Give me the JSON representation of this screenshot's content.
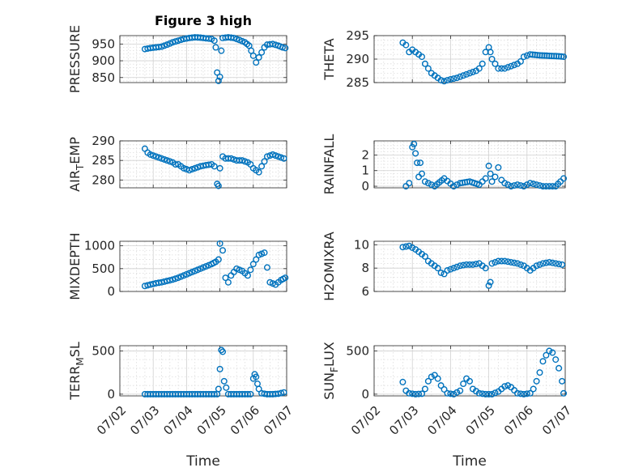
{
  "figure": {
    "title": "Figure 3 high",
    "marker_color": "#0072bd",
    "grid_color": "#dcdcdc",
    "axis_color": "#262626"
  },
  "chart_data": [
    {
      "type": "scatter",
      "ylabel": "PRESSURE",
      "xlim": [
        "07/02",
        "07/07"
      ],
      "ylim": [
        835,
        975
      ],
      "yticks": [
        850,
        900,
        950
      ],
      "xticks": [],
      "xlabel": "",
      "grid": true,
      "x": [
        "07/02 18:00",
        "07/02 22:00",
        "07/03 02:00",
        "07/03 06:00",
        "07/03 10:00",
        "07/03 14:00",
        "07/03 18:00",
        "07/03 22:00",
        "07/04 02:00",
        "07/04 06:00",
        "07/04 10:00",
        "07/04 14:00",
        "07/04 18:00",
        "07/04 20:00",
        "07/04 21:00",
        "07/04 22:00",
        "07/04 23:00",
        "07/05 00:00",
        "07/05 01:00",
        "07/05 02:00",
        "07/05 06:00",
        "07/05 10:00",
        "07/05 14:00",
        "07/05 18:00",
        "07/05 21:00",
        "07/06 00:00",
        "07/06 02:00",
        "07/06 04:00",
        "07/06 06:00",
        "07/06 08:00",
        "07/06 10:00",
        "07/06 14:00",
        "07/06 18:00",
        "07/06 21:00",
        "07/06 23:00"
      ],
      "y": [
        935,
        938,
        940,
        942,
        948,
        955,
        960,
        965,
        968,
        970,
        969,
        967,
        965,
        960,
        940,
        865,
        840,
        852,
        930,
        968,
        970,
        968,
        962,
        955,
        945,
        915,
        895,
        910,
        925,
        940,
        948,
        950,
        945,
        940,
        938
      ]
    },
    {
      "type": "scatter",
      "ylabel": "THETA",
      "xlim": [
        "07/02",
        "07/07"
      ],
      "ylim": [
        285,
        295
      ],
      "yticks": [
        285,
        290,
        295
      ],
      "xticks": [],
      "xlabel": "",
      "grid": true,
      "x": [
        "07/02 18:00",
        "07/02 20:00",
        "07/02 22:00",
        "07/03 00:00",
        "07/03 02:00",
        "07/03 04:00",
        "07/03 06:00",
        "07/03 08:00",
        "07/03 10:00",
        "07/03 12:00",
        "07/03 14:00",
        "07/03 16:00",
        "07/03 18:00",
        "07/03 20:00",
        "07/03 22:00",
        "07/04 00:00",
        "07/04 04:00",
        "07/04 08:00",
        "07/04 12:00",
        "07/04 16:00",
        "07/04 18:00",
        "07/04 20:00",
        "07/04 22:00",
        "07/05 00:00",
        "07/05 01:00",
        "07/05 02:00",
        "07/05 04:00",
        "07/05 06:00",
        "07/05 10:00",
        "07/05 14:00",
        "07/05 18:00",
        "07/05 20:00",
        "07/05 22:00",
        "07/06 02:00",
        "07/06 08:00",
        "07/06 14:00",
        "07/06 20:00",
        "07/06 23:00"
      ],
      "y": [
        293.5,
        293,
        291.5,
        292,
        291.5,
        291,
        290.5,
        289,
        288,
        287,
        286.5,
        286,
        285.5,
        285.3,
        285.5,
        285.7,
        286,
        286.5,
        287,
        287.5,
        288,
        289,
        291.5,
        292.5,
        291.5,
        290,
        289,
        288,
        288,
        288.5,
        289,
        289.5,
        290.5,
        291,
        290.8,
        290.7,
        290.6,
        290.5
      ]
    },
    {
      "type": "scatter",
      "ylabel": "AIR_TEMP",
      "xlim": [
        "07/02",
        "07/07"
      ],
      "ylim": [
        278,
        290
      ],
      "yticks": [
        280,
        285,
        290
      ],
      "xticks": [],
      "xlabel": "",
      "grid": true,
      "x": [
        "07/02 18:00",
        "07/02 20:00",
        "07/02 22:00",
        "07/03 02:00",
        "07/03 06:00",
        "07/03 10:00",
        "07/03 14:00",
        "07/03 16:00",
        "07/03 18:00",
        "07/03 20:00",
        "07/03 22:00",
        "07/04 02:00",
        "07/04 06:00",
        "07/04 10:00",
        "07/04 14:00",
        "07/04 18:00",
        "07/04 20:00",
        "07/04 22:00",
        "07/04 23:00",
        "07/05 00:00",
        "07/05 02:00",
        "07/05 04:00",
        "07/05 08:00",
        "07/05 12:00",
        "07/05 16:00",
        "07/05 20:00",
        "07/05 22:00",
        "07/06 00:00",
        "07/06 02:00",
        "07/06 04:00",
        "07/06 06:00",
        "07/06 10:00",
        "07/06 14:00",
        "07/06 18:00",
        "07/06 22:00"
      ],
      "y": [
        288,
        287,
        286.5,
        286,
        285.5,
        285,
        284.5,
        284,
        284,
        283.5,
        283,
        282.5,
        283,
        283.5,
        283.8,
        284,
        283.5,
        279,
        278.5,
        283,
        286,
        285.5,
        285.5,
        285,
        285,
        284.5,
        284,
        283,
        282.5,
        282,
        283.5,
        286,
        286.5,
        286,
        285.5
      ]
    },
    {
      "type": "scatter",
      "ylabel": "RAINFALL",
      "xlim": [
        "07/02",
        "07/07"
      ],
      "ylim": [
        -0.1,
        2.9
      ],
      "yticks": [
        0,
        1,
        2
      ],
      "xticks": [],
      "xlabel": "",
      "grid": true,
      "x": [
        "07/02 20:00",
        "07/02 22:00",
        "07/03 00:00",
        "07/03 01:00",
        "07/03 02:00",
        "07/03 03:00",
        "07/03 04:00",
        "07/03 05:00",
        "07/03 06:00",
        "07/03 08:00",
        "07/03 10:00",
        "07/03 14:00",
        "07/03 20:00",
        "07/04 02:00",
        "07/04 06:00",
        "07/04 12:00",
        "07/04 18:00",
        "07/04 22:00",
        "07/05 00:00",
        "07/05 01:00",
        "07/05 02:00",
        "07/05 04:00",
        "07/05 06:00",
        "07/05 08:00",
        "07/05 10:00",
        "07/05 14:00",
        "07/05 18:00",
        "07/05 22:00",
        "07/06 02:00",
        "07/06 06:00",
        "07/06 10:00",
        "07/06 14:00",
        "07/06 18:00",
        "07/06 21:00",
        "07/06 23:00"
      ],
      "y": [
        0,
        0.2,
        2.5,
        2.7,
        2.1,
        1.5,
        0.6,
        1.5,
        0.8,
        0.3,
        0.2,
        0,
        0.5,
        0,
        0.2,
        0.3,
        0.1,
        0.5,
        1.3,
        0.8,
        0.3,
        0.6,
        1.2,
        0.4,
        0.2,
        0,
        0.1,
        0,
        0.2,
        0.1,
        0,
        0,
        0,
        0.3,
        0.5
      ]
    },
    {
      "type": "scatter",
      "ylabel": "MIXDEPTH",
      "xlim": [
        "07/02",
        "07/07"
      ],
      "ylim": [
        0,
        1100
      ],
      "yticks": [
        0,
        500,
        1000
      ],
      "xticks": [],
      "xlabel": "",
      "grid": true,
      "x": [
        "07/02 18:00",
        "07/02 22:00",
        "07/03 02:00",
        "07/03 06:00",
        "07/03 10:00",
        "07/03 14:00",
        "07/03 18:00",
        "07/03 22:00",
        "07/04 02:00",
        "07/04 06:00",
        "07/04 10:00",
        "07/04 14:00",
        "07/04 18:00",
        "07/04 21:00",
        "07/04 23:00",
        "07/05 00:00",
        "07/05 02:00",
        "07/05 04:00",
        "07/05 06:00",
        "07/05 08:00",
        "07/05 12:00",
        "07/05 16:00",
        "07/05 20:00",
        "07/06 00:00",
        "07/06 02:00",
        "07/06 04:00",
        "07/06 08:00",
        "07/06 12:00",
        "07/06 16:00",
        "07/06 20:00",
        "07/06 23:00"
      ],
      "y": [
        120,
        150,
        180,
        200,
        230,
        260,
        300,
        350,
        400,
        450,
        500,
        550,
        600,
        650,
        700,
        1050,
        900,
        300,
        200,
        350,
        500,
        450,
        350,
        600,
        700,
        800,
        850,
        200,
        150,
        250,
        300
      ]
    },
    {
      "type": "scatter",
      "ylabel": "H2OMIXRA",
      "xlim": [
        "07/02",
        "07/07"
      ],
      "ylim": [
        6,
        10.3
      ],
      "yticks": [
        6,
        8,
        10
      ],
      "xticks": [],
      "xlabel": "",
      "grid": true,
      "x": [
        "07/02 18:00",
        "07/02 22:00",
        "07/03 02:00",
        "07/03 06:00",
        "07/03 08:00",
        "07/03 10:00",
        "07/03 12:00",
        "07/03 14:00",
        "07/03 16:00",
        "07/03 18:00",
        "07/03 20:00",
        "07/03 22:00",
        "07/04 02:00",
        "07/04 06:00",
        "07/04 10:00",
        "07/04 14:00",
        "07/04 18:00",
        "07/04 20:00",
        "07/04 22:00",
        "07/05 00:00",
        "07/05 01:00",
        "07/05 02:00",
        "07/05 06:00",
        "07/05 10:00",
        "07/05 14:00",
        "07/05 18:00",
        "07/05 22:00",
        "07/06 02:00",
        "07/06 06:00",
        "07/06 10:00",
        "07/06 14:00",
        "07/06 18:00",
        "07/06 22:00"
      ],
      "y": [
        9.8,
        9.9,
        9.6,
        9.2,
        9.0,
        8.6,
        8.4,
        8.2,
        8.0,
        7.6,
        7.5,
        7.8,
        8.0,
        8.2,
        8.3,
        8.3,
        8.4,
        8.2,
        8.0,
        6.5,
        6.8,
        8.4,
        8.6,
        8.6,
        8.5,
        8.4,
        8.2,
        7.8,
        8.2,
        8.4,
        8.5,
        8.4,
        8.3
      ]
    },
    {
      "type": "scatter",
      "ylabel": "TERR_MSL",
      "xlim": [
        "07/02",
        "07/07"
      ],
      "ylim": [
        -20,
        560
      ],
      "yticks": [
        0,
        500
      ],
      "xticks": [
        "07/02",
        "07/03",
        "07/04",
        "07/05",
        "07/06",
        "07/07"
      ],
      "xlabel": "Time",
      "grid": true,
      "x": [
        "07/02 18:00",
        "07/02 22:00",
        "07/03 02:00",
        "07/03 06:00",
        "07/03 10:00",
        "07/03 14:00",
        "07/03 18:00",
        "07/03 22:00",
        "07/04 02:00",
        "07/04 06:00",
        "07/04 10:00",
        "07/04 14:00",
        "07/04 18:00",
        "07/04 22:00",
        "07/04 23:00",
        "07/05 00:00",
        "07/05 01:00",
        "07/05 02:00",
        "07/05 03:00",
        "07/05 06:00",
        "07/05 10:00",
        "07/05 14:00",
        "07/05 18:00",
        "07/05 22:00",
        "07/06 00:00",
        "07/06 01:00",
        "07/06 02:00",
        "07/06 03:00",
        "07/06 04:00",
        "07/06 06:00",
        "07/06 10:00",
        "07/06 14:00",
        "07/06 18:00",
        "07/06 22:00"
      ],
      "y": [
        0,
        0,
        0,
        0,
        0,
        0,
        0,
        0,
        0,
        0,
        0,
        0,
        0,
        0,
        60,
        290,
        510,
        490,
        150,
        0,
        0,
        0,
        0,
        0,
        180,
        230,
        200,
        120,
        60,
        10,
        0,
        0,
        5,
        20
      ]
    },
    {
      "type": "scatter",
      "ylabel": "SUN_FLUX",
      "xlim": [
        "07/02",
        "07/07"
      ],
      "ylim": [
        -20,
        560
      ],
      "yticks": [
        0,
        500
      ],
      "xticks": [
        "07/02",
        "07/03",
        "07/04",
        "07/05",
        "07/06",
        "07/07"
      ],
      "xlabel": "Time",
      "grid": true,
      "x": [
        "07/02 18:00",
        "07/02 20:00",
        "07/02 22:00",
        "07/03 02:00",
        "07/03 06:00",
        "07/03 08:00",
        "07/03 10:00",
        "07/03 12:00",
        "07/03 14:00",
        "07/03 16:00",
        "07/03 18:00",
        "07/03 22:00",
        "07/04 02:00",
        "07/04 06:00",
        "07/04 08:00",
        "07/04 10:00",
        "07/04 12:00",
        "07/04 14:00",
        "07/04 18:00",
        "07/04 22:00",
        "07/05 02:00",
        "07/05 06:00",
        "07/05 10:00",
        "07/05 12:00",
        "07/05 14:00",
        "07/05 18:00",
        "07/05 22:00",
        "07/06 02:00",
        "07/06 04:00",
        "07/06 06:00",
        "07/06 08:00",
        "07/06 10:00",
        "07/06 12:00",
        "07/06 14:00",
        "07/06 16:00",
        "07/06 18:00",
        "07/06 20:00",
        "07/06 22:00",
        "07/06 23:00"
      ],
      "y": [
        140,
        40,
        10,
        0,
        5,
        60,
        150,
        200,
        220,
        180,
        100,
        10,
        0,
        40,
        120,
        180,
        150,
        60,
        10,
        0,
        0,
        30,
        90,
        100,
        80,
        10,
        0,
        10,
        60,
        150,
        250,
        380,
        450,
        500,
        480,
        400,
        300,
        150,
        10
      ]
    }
  ]
}
